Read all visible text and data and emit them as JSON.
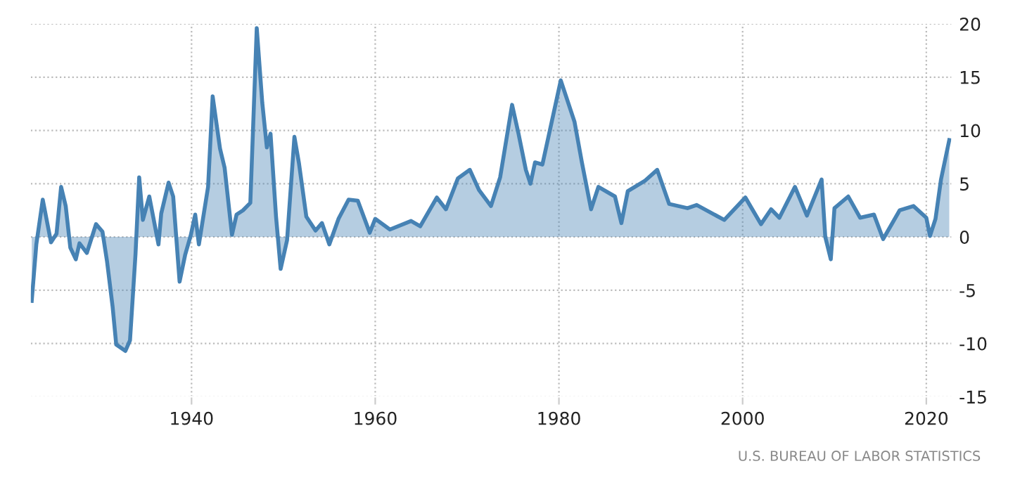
{
  "chart_data": {
    "type": "area",
    "xlim": [
      1922.5,
      2022.8
    ],
    "ylim": [
      -15,
      20
    ],
    "xticks": [
      1940,
      1960,
      1980,
      2000,
      2020
    ],
    "yticks": [
      -15,
      -10,
      -5,
      0,
      5,
      10,
      15,
      20
    ],
    "grid": true,
    "legend": false,
    "annotations": [
      "U.S. BUREAU OF LABOR STATISTICS"
    ],
    "series": [
      {
        "color": "#4682b4",
        "x": [
          1922.6,
          1923.1,
          1923.8,
          1924.7,
          1925.3,
          1925.8,
          1926.3,
          1926.8,
          1927.4,
          1927.8,
          1928.6,
          1929.6,
          1930.3,
          1930.8,
          1931.4,
          1931.8,
          1932.8,
          1933.3,
          1933.9,
          1934.3,
          1934.7,
          1935.4,
          1936.4,
          1936.7,
          1937.5,
          1938.0,
          1938.7,
          1939.3,
          1939.9,
          1940.4,
          1940.8,
          1941.8,
          1942.3,
          1943.1,
          1943.6,
          1944.4,
          1944.9,
          1945.6,
          1946.4,
          1947.1,
          1947.7,
          1948.2,
          1948.6,
          1949.2,
          1949.7,
          1950.4,
          1951.2,
          1951.7,
          1952.5,
          1953.5,
          1954.2,
          1955.0,
          1956.0,
          1957.1,
          1958.1,
          1959.4,
          1960.0,
          1961.6,
          1963.9,
          1964.9,
          1966.7,
          1967.7,
          1969.0,
          1970.3,
          1971.3,
          1972.6,
          1973.6,
          1974.9,
          1975.6,
          1976.4,
          1976.9,
          1977.4,
          1978.2,
          1980.2,
          1981.7,
          1982.5,
          1983.5,
          1984.3,
          1986.1,
          1986.8,
          1987.5,
          1989.4,
          1990.7,
          1992.0,
          1994.0,
          1995.0,
          1998.0,
          2000.3,
          2002.0,
          2003.1,
          2004.0,
          2005.7,
          2007.0,
          2008.6,
          2009.0,
          2009.6,
          2010.0,
          2011.5,
          2012.8,
          2014.3,
          2015.3,
          2017.1,
          2018.6,
          2020.0,
          2020.4,
          2021.0,
          2021.6,
          2022.5
        ],
        "values": [
          -6.0,
          -0.7,
          3.5,
          -0.5,
          0.3,
          4.7,
          2.9,
          -1.0,
          -2.1,
          -0.6,
          -1.5,
          1.2,
          0.5,
          -2.3,
          -6.5,
          -10.1,
          -10.7,
          -9.7,
          -1.6,
          5.6,
          1.6,
          3.8,
          -0.7,
          2.2,
          5.1,
          3.8,
          -4.2,
          -1.7,
          0.1,
          2.1,
          -0.7,
          4.7,
          13.2,
          8.3,
          6.5,
          0.2,
          2.1,
          2.5,
          3.2,
          19.6,
          12.6,
          8.4,
          9.7,
          1.9,
          -3.0,
          -0.3,
          9.4,
          6.9,
          1.9,
          0.6,
          1.3,
          -0.7,
          1.7,
          3.5,
          3.4,
          0.4,
          1.7,
          0.7,
          1.5,
          1.0,
          3.7,
          2.6,
          5.5,
          6.3,
          4.4,
          2.9,
          5.6,
          12.4,
          9.7,
          6.3,
          5.0,
          7.0,
          6.8,
          14.7,
          10.8,
          7.0,
          2.6,
          4.7,
          3.8,
          1.3,
          4.3,
          5.3,
          6.3,
          3.1,
          2.7,
          3.0,
          1.6,
          3.7,
          1.2,
          2.6,
          1.8,
          4.7,
          2.0,
          5.4,
          0.0,
          -2.1,
          2.7,
          3.8,
          1.8,
          2.1,
          -0.2,
          2.5,
          2.9,
          1.8,
          0.1,
          1.7,
          5.4,
          9.1
        ]
      }
    ]
  }
}
